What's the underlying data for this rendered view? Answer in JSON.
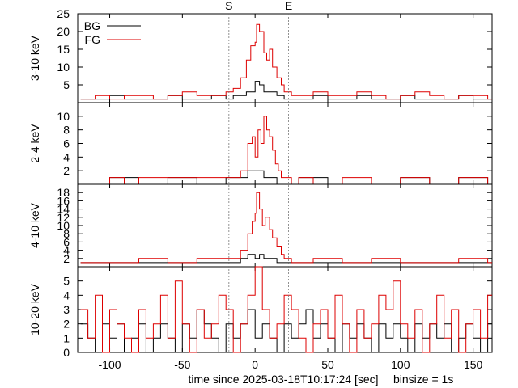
{
  "chart_data": {
    "type": "line",
    "style": "step-histogram",
    "x_unit_label": "time since 2025-03-18T10:17:24 [sec]",
    "binsize_label": "binsize = 1s",
    "xlim": [
      -122,
      163
    ],
    "x_ticks": [
      -100,
      -50,
      0,
      50,
      100,
      150
    ],
    "x_tick_labels": [
      "-100",
      "-50",
      "0",
      "50",
      "100",
      "150"
    ],
    "markers": [
      {
        "label": "S",
        "x": -18
      },
      {
        "label": "E",
        "x": 23
      }
    ],
    "legend": {
      "placement": "top-left",
      "entries": [
        {
          "name": "BG",
          "color": "#000000"
        },
        {
          "name": "FG",
          "color": "#dd0000"
        }
      ]
    },
    "panels": [
      {
        "ylabel": "3-10 keV",
        "ylim": [
          0,
          25
        ],
        "y_ticks": [
          5,
          10,
          15,
          20,
          25
        ],
        "y_tick_labels": [
          "5",
          "10",
          "15",
          "20",
          "25"
        ],
        "series": [
          {
            "name": "BG",
            "color": "#000000",
            "x": [
              -120,
              -110,
              -100,
              -90,
              -80,
              -70,
              -60,
              -50,
              -40,
              -30,
              -20,
              -15,
              -10,
              -6,
              -3,
              0,
              3,
              6,
              10,
              15,
              20,
              30,
              40,
              50,
              60,
              70,
              80,
              90,
              100,
              110,
              120,
              130,
              140,
              150,
              160
            ],
            "values": [
              1,
              1,
              2,
              1,
              1,
              1,
              2,
              1,
              1,
              2,
              1,
              2,
              2,
              3,
              3,
              6,
              5,
              3,
              3,
              2,
              1,
              1,
              2,
              1,
              1,
              2,
              1,
              1,
              2,
              1,
              1,
              1,
              2,
              1,
              1
            ]
          },
          {
            "name": "FG",
            "color": "#dd0000",
            "x": [
              -120,
              -110,
              -100,
              -90,
              -80,
              -70,
              -60,
              -50,
              -40,
              -30,
              -20,
              -15,
              -10,
              -6,
              -3,
              0,
              1,
              3,
              6,
              8,
              10,
              12,
              15,
              18,
              20,
              25,
              30,
              40,
              50,
              60,
              70,
              80,
              90,
              100,
              110,
              120,
              130,
              140,
              150,
              160
            ],
            "values": [
              1,
              2,
              1,
              2,
              2,
              1,
              2,
              3,
              2,
              2,
              3,
              4,
              7,
              12,
              16,
              17,
              22,
              20,
              14,
              12,
              15,
              10,
              7,
              5,
              3,
              2,
              2,
              3,
              2,
              2,
              3,
              2,
              1,
              2,
              3,
              2,
              1,
              2,
              2,
              1
            ]
          }
        ]
      },
      {
        "ylabel": "2-4 keV",
        "ylim": [
          0,
          12
        ],
        "y_ticks": [
          2,
          4,
          6,
          8,
          10
        ],
        "y_tick_labels": [
          "2",
          "4",
          "6",
          "8",
          "10"
        ],
        "series": [
          {
            "name": "BG",
            "color": "#000000",
            "x": [
              -120,
              -100,
              -80,
              -60,
              -40,
              -20,
              -10,
              -5,
              0,
              3,
              6,
              10,
              15,
              20,
              30,
              50,
              80,
              100,
              120,
              140,
              160
            ],
            "values": [
              0,
              1,
              0,
              1,
              0,
              1,
              1,
              2,
              2,
              2,
              1,
              1,
              0,
              0,
              1,
              0,
              0,
              1,
              0,
              1,
              0
            ]
          },
          {
            "name": "FG",
            "color": "#dd0000",
            "x": [
              -120,
              -100,
              -90,
              -80,
              -60,
              -40,
              -20,
              -10,
              -5,
              -2,
              0,
              2,
              4,
              6,
              8,
              10,
              12,
              14,
              16,
              18,
              20,
              25,
              30,
              40,
              60,
              80,
              100,
              120,
              140,
              160
            ],
            "values": [
              0,
              1,
              0,
              1,
              1,
              1,
              1,
              2,
              6,
              7,
              4,
              8,
              6,
              10,
              8,
              7,
              5,
              3,
              2,
              1,
              1,
              0,
              1,
              0,
              1,
              0,
              1,
              0,
              1,
              0
            ]
          }
        ]
      },
      {
        "ylabel": "4-10 keV",
        "ylim": [
          0,
          20
        ],
        "y_ticks": [
          2,
          4,
          6,
          8,
          10,
          12,
          14,
          16,
          18
        ],
        "y_tick_labels": [
          "2",
          "4",
          "6",
          "8",
          "10",
          "12",
          "14",
          "16",
          "18"
        ],
        "series": [
          {
            "name": "BG",
            "color": "#000000",
            "x": [
              -120,
              -100,
              -80,
              -60,
              -40,
              -20,
              -10,
              -5,
              0,
              3,
              6,
              10,
              15,
              20,
              30,
              50,
              80,
              100,
              120,
              140,
              160
            ],
            "values": [
              1,
              1,
              1,
              1,
              1,
              1,
              2,
              3,
              2,
              3,
              2,
              2,
              1,
              1,
              1,
              1,
              1,
              1,
              1,
              1,
              1
            ]
          },
          {
            "name": "FG",
            "color": "#dd0000",
            "x": [
              -120,
              -100,
              -80,
              -60,
              -40,
              -20,
              -10,
              -5,
              -2,
              0,
              1,
              3,
              5,
              7,
              10,
              12,
              15,
              18,
              20,
              25,
              30,
              40,
              60,
              80,
              100,
              120,
              140,
              160
            ],
            "values": [
              1,
              1,
              2,
              1,
              2,
              2,
              4,
              8,
              11,
              13,
              18,
              14,
              10,
              12,
              9,
              7,
              5,
              3,
              2,
              1,
              1,
              2,
              1,
              2,
              1,
              1,
              2,
              1
            ]
          }
        ]
      },
      {
        "ylabel": "10-20 keV",
        "ylim": [
          0,
          6
        ],
        "y_ticks": [
          0,
          1,
          2,
          3,
          4,
          5
        ],
        "y_tick_labels": [
          "0",
          "1",
          "2",
          "3",
          "4",
          "5"
        ],
        "series": [
          {
            "name": "BG",
            "color": "#000000",
            "x": [
              -120,
              -115,
              -110,
              -105,
              -100,
              -95,
              -90,
              -85,
              -80,
              -75,
              -70,
              -65,
              -60,
              -55,
              -50,
              -45,
              -40,
              -35,
              -30,
              -25,
              -20,
              -15,
              -10,
              -5,
              0,
              5,
              10,
              15,
              20,
              25,
              30,
              35,
              40,
              45,
              50,
              55,
              60,
              65,
              70,
              75,
              80,
              85,
              90,
              95,
              100,
              105,
              110,
              115,
              120,
              125,
              130,
              135,
              140,
              145,
              150,
              155,
              160
            ],
            "values": [
              2,
              1,
              0,
              2,
              1,
              2,
              0,
              1,
              2,
              0,
              1,
              2,
              1,
              0,
              2,
              1,
              3,
              2,
              1,
              0,
              2,
              1,
              2,
              3,
              1,
              2,
              1,
              0,
              2,
              1,
              2,
              3,
              1,
              2,
              1,
              0,
              2,
              1,
              2,
              1,
              0,
              2,
              1,
              2,
              1,
              0,
              2,
              1,
              2,
              1,
              2,
              0,
              1,
              2,
              1,
              0,
              2
            ]
          },
          {
            "name": "FG",
            "color": "#dd0000",
            "x": [
              -120,
              -115,
              -110,
              -105,
              -100,
              -95,
              -90,
              -85,
              -80,
              -75,
              -70,
              -65,
              -60,
              -55,
              -50,
              -45,
              -40,
              -35,
              -30,
              -25,
              -20,
              -15,
              -10,
              -5,
              0,
              5,
              10,
              15,
              20,
              25,
              30,
              35,
              40,
              45,
              50,
              55,
              60,
              65,
              70,
              75,
              80,
              85,
              90,
              95,
              100,
              105,
              110,
              115,
              120,
              125,
              130,
              135,
              140,
              145,
              150,
              155,
              160
            ],
            "values": [
              3,
              1,
              4,
              0,
              3,
              2,
              1,
              0,
              3,
              1,
              2,
              4,
              1,
              5,
              2,
              0,
              3,
              1,
              2,
              4,
              3,
              0,
              2,
              4,
              6,
              3,
              1,
              2,
              4,
              3,
              1,
              0,
              2,
              3,
              1,
              4,
              2,
              0,
              3,
              1,
              2,
              4,
              3,
              5,
              2,
              1,
              3,
              0,
              2,
              4,
              1,
              3,
              0,
              2,
              3,
              1,
              4
            ]
          }
        ]
      }
    ]
  }
}
